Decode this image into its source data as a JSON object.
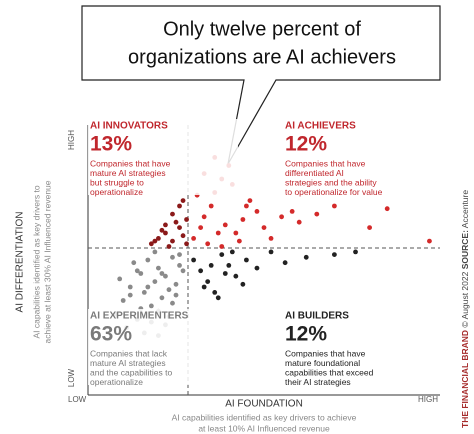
{
  "chart_data": {
    "type": "scatter",
    "title": [
      "Only twelve percent of",
      "organizations are AI achievers"
    ],
    "x_label": "AI FOUNDATION",
    "x_sublabel": [
      "AI capabilities identified as key drivers to achieve",
      "at least 10% AI Influenced revenue"
    ],
    "y_label": "AI DIFFERENTIATION",
    "y_sublabel": [
      "AI capabilities identified as key drivers to",
      "achieve at least 30% AI Influenced revenue"
    ],
    "x_ends": [
      "LOW",
      "HIGH"
    ],
    "y_ends": [
      "LOW",
      "HIGH"
    ],
    "xlim": [
      0,
      100
    ],
    "ylim": [
      0,
      100
    ],
    "series": [
      {
        "name": "AI EXPERIMENTERS",
        "share": "63%",
        "label_color": "#7a7a7a",
        "color": "#8a8a8a",
        "description": [
          "Companies that lack",
          "mature AI strategies",
          "and the capabilities to",
          "operationalize"
        ],
        "x": [
          8,
          10,
          12,
          14,
          15,
          16,
          17,
          18,
          19,
          20,
          21,
          22,
          23,
          24,
          25,
          26,
          27,
          11,
          13,
          16,
          18,
          20,
          22,
          24,
          26,
          9,
          12,
          15,
          19,
          23,
          17,
          21,
          25,
          14,
          20
        ],
        "values": [
          30,
          35,
          40,
          28,
          45,
          38,
          50,
          33,
          42,
          47,
          36,
          44,
          39,
          51,
          41,
          48,
          46,
          25,
          49,
          23,
          27,
          31,
          26,
          34,
          52,
          43,
          37,
          32,
          53,
          29,
          40,
          45,
          37,
          46,
          22
        ]
      },
      {
        "name": "AI INNOVATORS",
        "share": "13%",
        "label_color": "#c0272d",
        "color": "#8b1a1a",
        "description": [
          "Companies that have",
          "mature AI strategies",
          "but struggle to",
          "operationalize"
        ],
        "x": [
          18,
          20,
          22,
          24,
          26,
          27,
          28,
          25,
          23,
          21,
          19,
          26,
          24,
          28,
          27,
          22
        ],
        "values": [
          56,
          58,
          60,
          57,
          62,
          59,
          65,
          64,
          55,
          61,
          57,
          70,
          67,
          56,
          72,
          63
        ]
      },
      {
        "name": "AI ACHIEVERS",
        "share": "12%",
        "label_color": "#c0272d",
        "color": "#d42a2a",
        "description": [
          "Companies that have",
          "differentiated AI",
          "strategies and the ability",
          "to operationalize for value"
        ],
        "x": [
          30,
          32,
          33,
          35,
          36,
          38,
          40,
          42,
          44,
          46,
          48,
          50,
          55,
          60,
          65,
          70,
          34,
          37,
          41,
          39,
          43,
          31,
          33,
          45,
          52,
          58,
          97,
          85,
          80,
          36,
          38
        ],
        "values": [
          58,
          62,
          66,
          70,
          75,
          80,
          85,
          60,
          65,
          72,
          68,
          62,
          66,
          64,
          67,
          70,
          56,
          60,
          78,
          63,
          57,
          74,
          82,
          70,
          58,
          68,
          57,
          69,
          62,
          88,
          55
        ]
      },
      {
        "name": "AI BUILDERS",
        "share": "12%",
        "label_color": "#222222",
        "color": "#222222",
        "description": [
          "Companies that have",
          "mature foundational",
          "capabilities that exceed",
          "their AI strategies"
        ],
        "x": [
          30,
          32,
          34,
          36,
          38,
          40,
          42,
          45,
          48,
          52,
          56,
          62,
          70,
          76,
          33,
          37,
          41,
          44,
          35,
          39
        ],
        "values": [
          50,
          46,
          42,
          38,
          52,
          48,
          44,
          50,
          47,
          53,
          49,
          51,
          52,
          53,
          40,
          36,
          53,
          41,
          48,
          45
        ]
      }
    ],
    "credit": {
      "brand": "THE FINANCIAL BRAND",
      "date": "© August 2022",
      "source_label": "SOURCE:",
      "source": "Accenture"
    }
  }
}
